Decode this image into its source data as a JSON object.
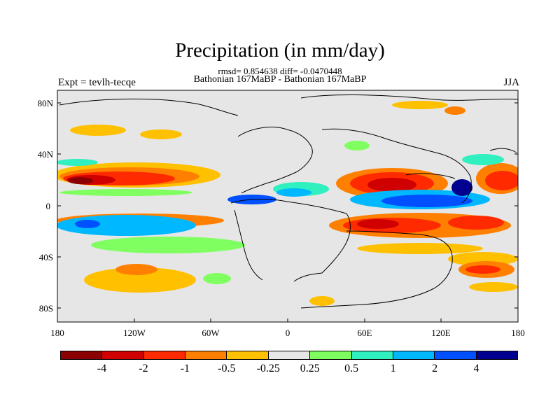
{
  "title": "Precipitation (in mm/day)",
  "stats": "rmsd= 0.854638 diff= -0.0470448",
  "subtitle": "Bathonian 167MaBP - Bathonian 167MaBP",
  "left_label": "Expt = tevlh-tecqe",
  "right_label": "JJA",
  "map": {
    "lat_ticks": [
      "80N",
      "40N",
      "0",
      "40S",
      "80S"
    ],
    "lon_ticks": [
      "180",
      "120W",
      "60W",
      "0",
      "60E",
      "120E",
      "180"
    ]
  },
  "colorbar": {
    "colors": [
      "#8b0000",
      "#d00000",
      "#ff2a00",
      "#ff8000",
      "#ffc000",
      "#e6e6e6",
      "#80ff60",
      "#30f0c0",
      "#00b8ff",
      "#0050ff",
      "#000090"
    ],
    "labels": [
      "-4",
      "-2",
      "-1",
      "-0.5",
      "-0.25",
      "0.25",
      "0.5",
      "1",
      "2",
      "4"
    ]
  }
}
